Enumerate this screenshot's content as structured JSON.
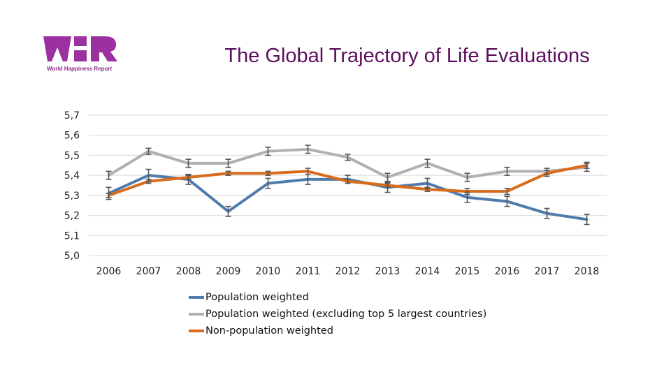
{
  "logo": {
    "name": "WHR",
    "caption": "World Happiness Report",
    "color": "#9b30a0"
  },
  "chart_data": {
    "type": "line",
    "title": "The Global Trajectory of Life Evaluations",
    "xlabel": "",
    "ylabel": "",
    "x": [
      "2006",
      "2007",
      "2008",
      "2009",
      "2010",
      "2011",
      "2012",
      "2013",
      "2014",
      "2015",
      "2016",
      "2017",
      "2018"
    ],
    "ylim": [
      5.0,
      5.7
    ],
    "yticks": [
      "5,7",
      "5,6",
      "5,5",
      "5,4",
      "5,3",
      "5,2",
      "5,1",
      "5,0"
    ],
    "ytick_values": [
      5.7,
      5.6,
      5.5,
      5.4,
      5.3,
      5.2,
      5.1,
      5.0
    ],
    "grid": true,
    "legend_position": "bottom",
    "error_bars": true,
    "series": [
      {
        "name": "Population weighted",
        "color": "#4f7cac",
        "values": [
          5.31,
          5.4,
          5.38,
          5.22,
          5.36,
          5.38,
          5.38,
          5.34,
          5.36,
          5.29,
          5.27,
          5.21,
          5.18
        ],
        "error": [
          0.03,
          0.03,
          0.025,
          0.025,
          0.025,
          0.025,
          0.02,
          0.025,
          0.025,
          0.025,
          0.025,
          0.025,
          0.025
        ]
      },
      {
        "name": "Population weighted (excluding top 5 largest countries)",
        "color": "#b0b0b0",
        "values": [
          5.4,
          5.52,
          5.46,
          5.46,
          5.52,
          5.53,
          5.49,
          5.39,
          5.46,
          5.39,
          5.42,
          5.42,
          5.44
        ],
        "error": [
          0.02,
          0.015,
          0.02,
          0.02,
          0.02,
          0.02,
          0.015,
          0.02,
          0.02,
          0.02,
          0.02,
          0.015,
          0.02
        ]
      },
      {
        "name": "Non-population weighted",
        "color": "#d96c1c",
        "values": [
          5.3,
          5.37,
          5.39,
          5.41,
          5.41,
          5.42,
          5.37,
          5.35,
          5.33,
          5.32,
          5.32,
          5.41,
          5.45
        ],
        "error": [
          0.01,
          0.01,
          0.01,
          0.01,
          0.01,
          0.015,
          0.01,
          0.01,
          0.01,
          0.015,
          0.015,
          0.015,
          0.015
        ]
      }
    ]
  }
}
